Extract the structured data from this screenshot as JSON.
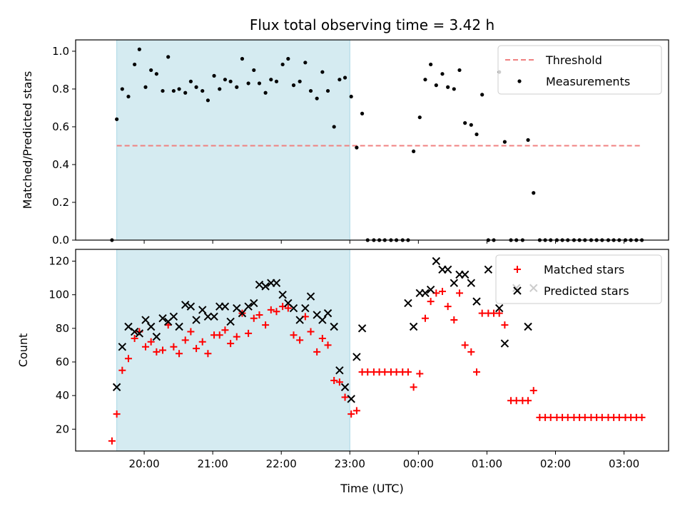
{
  "chart_data": [
    {
      "type": "scatter",
      "title": "Flux total observing time = 3.42 h",
      "ylabel": "Matched/Predicted stars",
      "xlabel": "",
      "x_unit": "hours UTC (continuing past midnight as 24+)",
      "xlim": [
        19.0,
        27.65
      ],
      "ylim": [
        0.0,
        1.06
      ],
      "yticks": [
        "0.0",
        "0.2",
        "0.4",
        "0.6",
        "0.8",
        "1.0"
      ],
      "grid": false,
      "legend_position": "top-right",
      "shaded_interval": [
        19.6,
        23.0
      ],
      "series": [
        {
          "name": "Threshold",
          "kind": "line",
          "style": "dashed",
          "color": "#f08080",
          "x": [
            19.6,
            27.25
          ],
          "y": [
            0.5,
            0.5
          ]
        },
        {
          "name": "Measurements",
          "kind": "points",
          "color": "#000000",
          "x": [
            19.53,
            19.6,
            19.68,
            19.77,
            19.86,
            19.93,
            20.02,
            20.1,
            20.18,
            20.27,
            20.35,
            20.43,
            20.51,
            20.6,
            20.68,
            20.76,
            20.85,
            20.93,
            21.02,
            21.1,
            21.18,
            21.26,
            21.35,
            21.43,
            21.52,
            21.6,
            21.68,
            21.77,
            21.85,
            21.93,
            22.02,
            22.1,
            22.18,
            22.27,
            22.35,
            22.43,
            22.52,
            22.6,
            22.68,
            22.77,
            22.85,
            22.93,
            23.02,
            23.1,
            23.18,
            23.26,
            23.35,
            23.43,
            23.51,
            23.6,
            23.68,
            23.77,
            23.85,
            23.93,
            24.02,
            24.1,
            24.18,
            24.26,
            24.35,
            24.43,
            24.52,
            24.6,
            24.68,
            24.77,
            24.85,
            24.93,
            25.02,
            25.1,
            25.18,
            25.26,
            25.35,
            25.43,
            25.52,
            25.6,
            25.68,
            25.77,
            25.85,
            25.93,
            26.02,
            26.1,
            26.18,
            26.27,
            26.35,
            26.43,
            26.52,
            26.6,
            26.68,
            26.77,
            26.85,
            26.93,
            27.02,
            27.1,
            27.18,
            27.26
          ],
          "y": [
            0.0,
            0.64,
            0.8,
            0.76,
            0.93,
            1.01,
            0.81,
            0.9,
            0.88,
            0.79,
            0.97,
            0.79,
            0.8,
            0.78,
            0.84,
            0.81,
            0.79,
            0.74,
            0.87,
            0.8,
            0.85,
            0.84,
            0.81,
            0.96,
            0.83,
            0.9,
            0.83,
            0.78,
            0.85,
            0.84,
            0.93,
            0.96,
            0.82,
            0.84,
            0.94,
            0.79,
            0.75,
            0.89,
            0.79,
            0.6,
            0.85,
            0.86,
            0.76,
            0.49,
            0.67,
            0.0,
            0.0,
            0.0,
            0.0,
            0.0,
            0.0,
            0.0,
            0.0,
            0.47,
            0.65,
            0.85,
            0.93,
            0.82,
            0.88,
            0.81,
            0.8,
            0.9,
            0.62,
            0.61,
            0.56,
            0.77,
            0.0,
            0.0,
            0.89,
            0.52,
            0.0,
            0.0,
            0.0,
            0.53,
            0.25,
            0.0,
            0.0,
            0.0,
            0.0,
            0.0,
            0.0,
            0.0,
            0.0,
            0.0,
            0.0,
            0.0,
            0.0,
            0.0,
            0.0,
            0.0,
            0.0,
            0.0,
            0.0,
            0.0
          ]
        }
      ]
    },
    {
      "type": "scatter",
      "title": "",
      "ylabel": "Count",
      "xlabel": "Time (UTC)",
      "xlim": [
        19.0,
        27.65
      ],
      "ylim": [
        7,
        127
      ],
      "yticks": [
        "20",
        "40",
        "60",
        "80",
        "100",
        "120"
      ],
      "xticks": [
        "20:00",
        "21:00",
        "22:00",
        "23:00",
        "00:00",
        "01:00",
        "02:00",
        "03:00"
      ],
      "xtick_values": [
        20,
        21,
        22,
        23,
        24,
        25,
        26,
        27
      ],
      "grid": false,
      "legend_position": "top-right",
      "shaded_interval": [
        19.6,
        23.0
      ],
      "series": [
        {
          "name": "Matched stars",
          "kind": "plus",
          "color": "#ff0000",
          "x": [
            19.53,
            19.6,
            19.68,
            19.77,
            19.86,
            19.93,
            20.02,
            20.1,
            20.18,
            20.27,
            20.35,
            20.43,
            20.51,
            20.6,
            20.68,
            20.76,
            20.85,
            20.93,
            21.02,
            21.1,
            21.18,
            21.26,
            21.35,
            21.43,
            21.52,
            21.6,
            21.68,
            21.77,
            21.85,
            21.93,
            22.02,
            22.1,
            22.18,
            22.27,
            22.35,
            22.43,
            22.52,
            22.6,
            22.68,
            22.77,
            22.85,
            22.93,
            23.02,
            23.1,
            23.18,
            23.26,
            23.35,
            23.43,
            23.51,
            23.6,
            23.68,
            23.77,
            23.85,
            23.93,
            24.02,
            24.1,
            24.18,
            24.26,
            24.35,
            24.43,
            24.52,
            24.6,
            24.68,
            24.77,
            24.85,
            24.93,
            25.02,
            25.1,
            25.18,
            25.26,
            25.35,
            25.43,
            25.52,
            25.6,
            25.68,
            25.77,
            25.85,
            25.93,
            26.02,
            26.1,
            26.18,
            26.27,
            26.35,
            26.43,
            26.52,
            26.6,
            26.68,
            26.77,
            26.85,
            26.93,
            27.02,
            27.1,
            27.18,
            27.26
          ],
          "y": [
            13,
            29,
            55,
            62,
            74,
            78,
            69,
            72,
            66,
            67,
            82,
            69,
            65,
            73,
            78,
            68,
            72,
            65,
            76,
            76,
            79,
            71,
            75,
            89,
            77,
            86,
            88,
            82,
            91,
            90,
            93,
            92,
            76,
            73,
            87,
            78,
            66,
            74,
            70,
            49,
            48,
            39,
            29,
            31,
            54,
            54,
            54,
            54,
            54,
            54,
            54,
            54,
            54,
            45,
            53,
            86,
            96,
            101,
            102,
            93,
            85,
            101,
            70,
            66,
            54,
            89,
            89,
            89,
            89,
            82,
            37,
            37,
            37,
            37,
            43,
            27,
            27,
            27,
            27,
            27,
            27,
            27,
            27,
            27,
            27,
            27,
            27,
            27,
            27,
            27,
            27,
            27,
            27,
            27
          ]
        },
        {
          "name": "Predicted stars",
          "kind": "cross",
          "color": "#000000",
          "x": [
            19.6,
            19.68,
            19.77,
            19.86,
            19.93,
            20.02,
            20.1,
            20.18,
            20.27,
            20.35,
            20.43,
            20.51,
            20.6,
            20.68,
            20.76,
            20.85,
            20.93,
            21.02,
            21.1,
            21.18,
            21.26,
            21.35,
            21.43,
            21.52,
            21.6,
            21.68,
            21.77,
            21.85,
            21.93,
            22.02,
            22.1,
            22.18,
            22.27,
            22.35,
            22.43,
            22.52,
            22.6,
            22.68,
            22.77,
            22.85,
            22.93,
            23.02,
            23.1,
            23.18,
            23.85,
            23.93,
            24.02,
            24.1,
            24.18,
            24.26,
            24.35,
            24.43,
            24.52,
            24.6,
            24.68,
            24.77,
            24.85,
            25.02,
            25.18,
            25.26,
            25.43,
            25.6,
            25.68
          ],
          "y": [
            45,
            69,
            81,
            78,
            77,
            85,
            81,
            75,
            86,
            84,
            87,
            81,
            94,
            93,
            85,
            91,
            87,
            87,
            93,
            93,
            84,
            92,
            89,
            93,
            95,
            106,
            105,
            107,
            107,
            100,
            95,
            92,
            85,
            92,
            99,
            88,
            85,
            89,
            81,
            55,
            45,
            38,
            63,
            80,
            95,
            81,
            101,
            101,
            103,
            120,
            115,
            115,
            107,
            112,
            112,
            107,
            96,
            115,
            92,
            71,
            104,
            81,
            104
          ]
        }
      ]
    }
  ]
}
